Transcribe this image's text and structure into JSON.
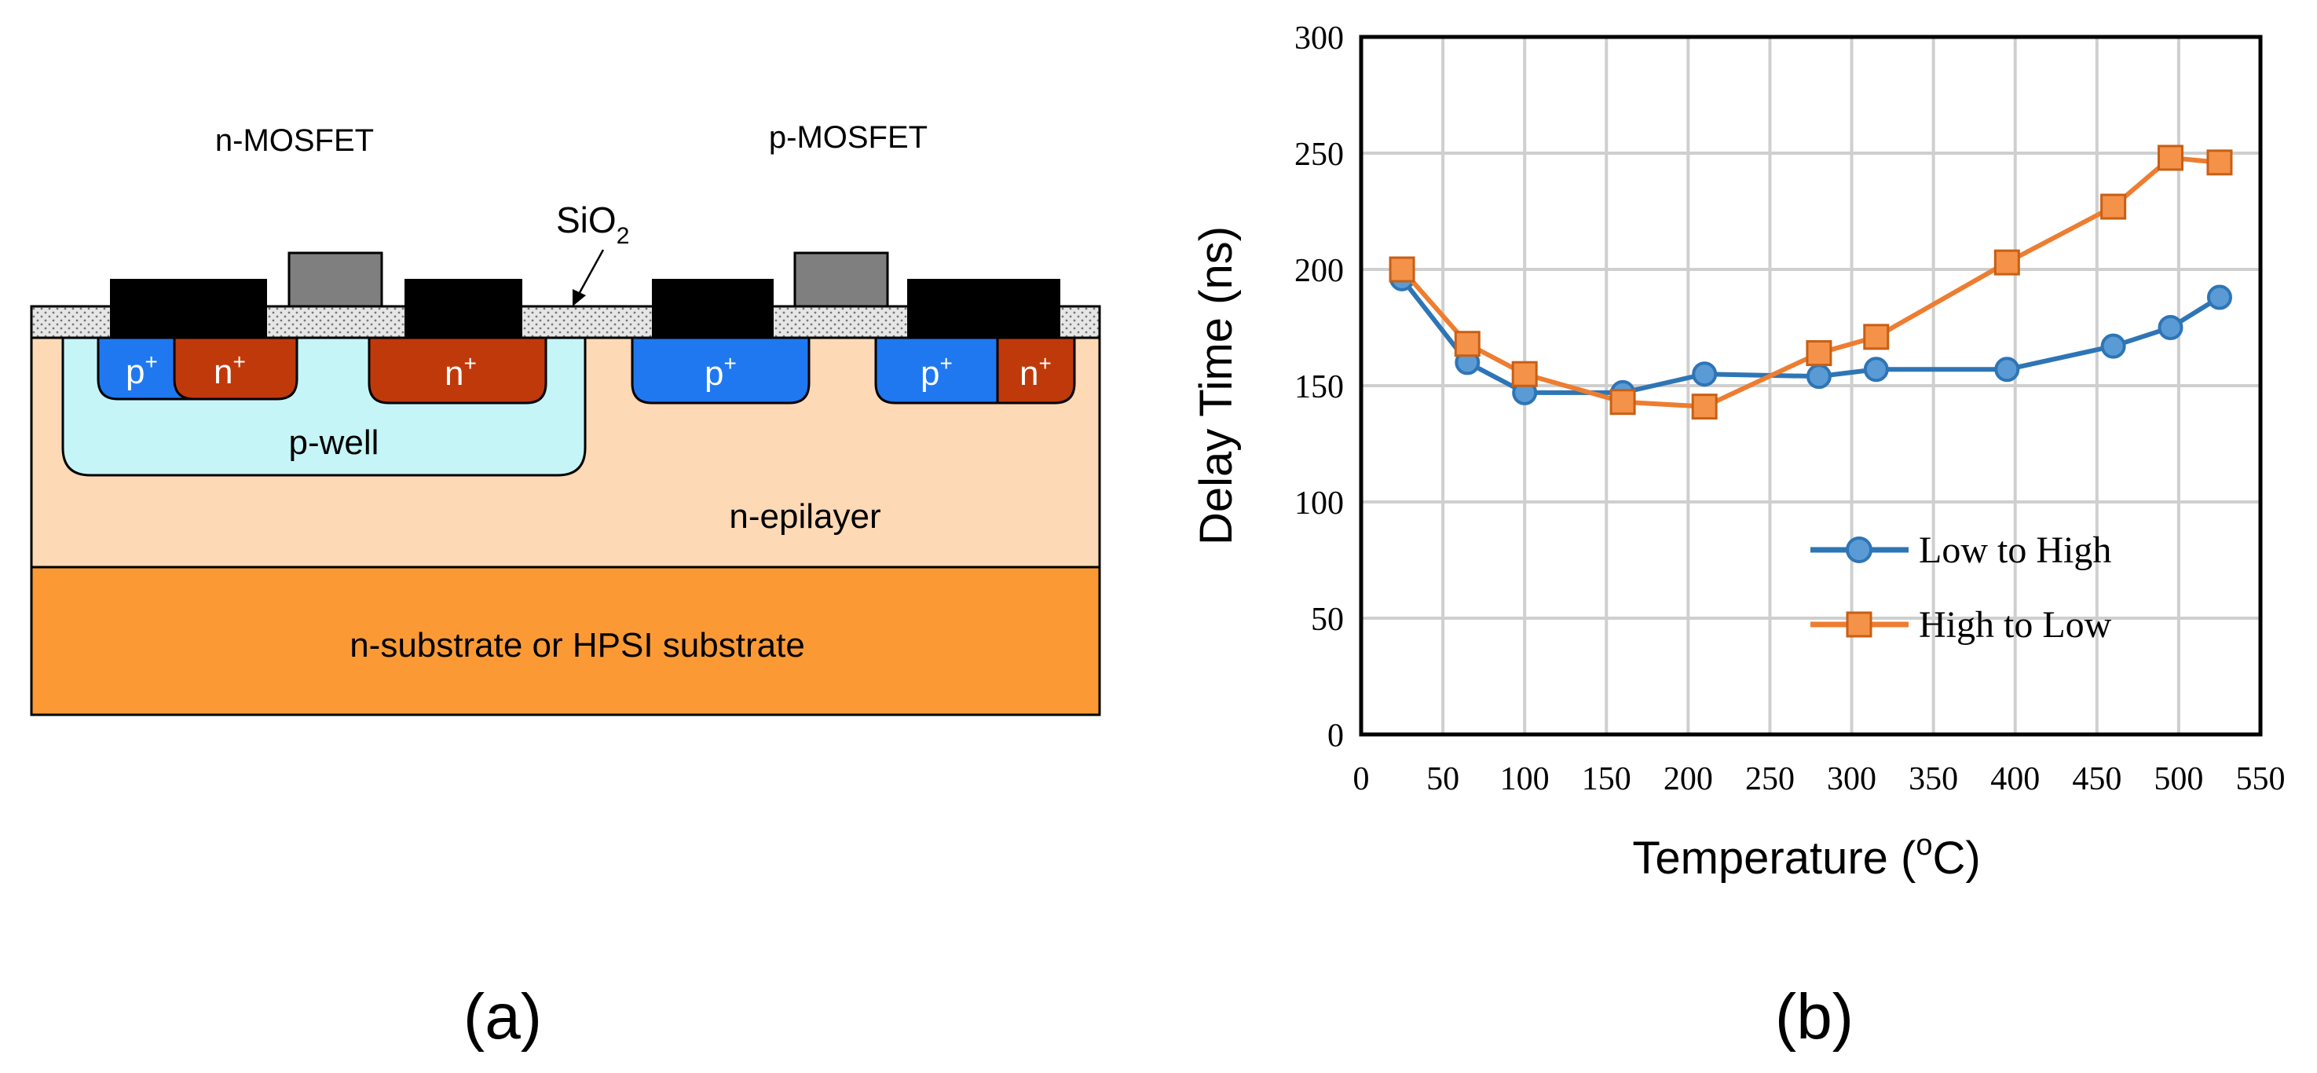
{
  "panel_a": {
    "n_mosfet_label": "n-MOSFET",
    "p_mosfet_label": "p-MOSFET",
    "oxide_label": "SiO",
    "oxide_sub": "2",
    "p_plus": "p",
    "n_plus": "n",
    "plus_sup": "+",
    "p_well_label": "p-well",
    "epilayer_label": "n-epilayer",
    "substrate_label": "n-substrate or HPSI substrate",
    "caption": "(a)",
    "colors": {
      "oxide": "#e6e6e6",
      "contact": "#000000",
      "gate": "#7f7f7f",
      "p_plus": "#1f78f0",
      "n_plus": "#c0390b",
      "p_well": "#c6f5f7",
      "epilayer": "#fdd9b5",
      "substrate": "#fb9a35"
    }
  },
  "panel_b": {
    "caption": "(b)",
    "chart_data": {
      "type": "line",
      "xlabel": "Temperature (",
      "xlabel_sup": "o",
      "xlabel_tail": "C)",
      "ylabel": "Delay Time (ns)",
      "xlim": [
        0,
        550
      ],
      "ylim": [
        0,
        300
      ],
      "xticks": [
        0,
        50,
        100,
        150,
        200,
        250,
        300,
        350,
        400,
        450,
        500,
        550
      ],
      "yticks": [
        0,
        50,
        100,
        150,
        200,
        250,
        300
      ],
      "grid": true,
      "legend_position": "lower-right",
      "series": [
        {
          "name": "Low to High",
          "marker": "circle",
          "color": "#2e75b6",
          "x": [
            25,
            65,
            100,
            160,
            210,
            280,
            315,
            395,
            460,
            495,
            525
          ],
          "y": [
            196,
            160,
            147,
            147,
            155,
            154,
            157,
            157,
            167,
            175,
            188
          ]
        },
        {
          "name": "High to Low",
          "marker": "square",
          "color": "#ed7d31",
          "x": [
            25,
            65,
            100,
            160,
            210,
            280,
            315,
            395,
            460,
            495,
            525
          ],
          "y": [
            200,
            168,
            155,
            143,
            141,
            164,
            171,
            203,
            227,
            248,
            246
          ]
        }
      ]
    }
  }
}
